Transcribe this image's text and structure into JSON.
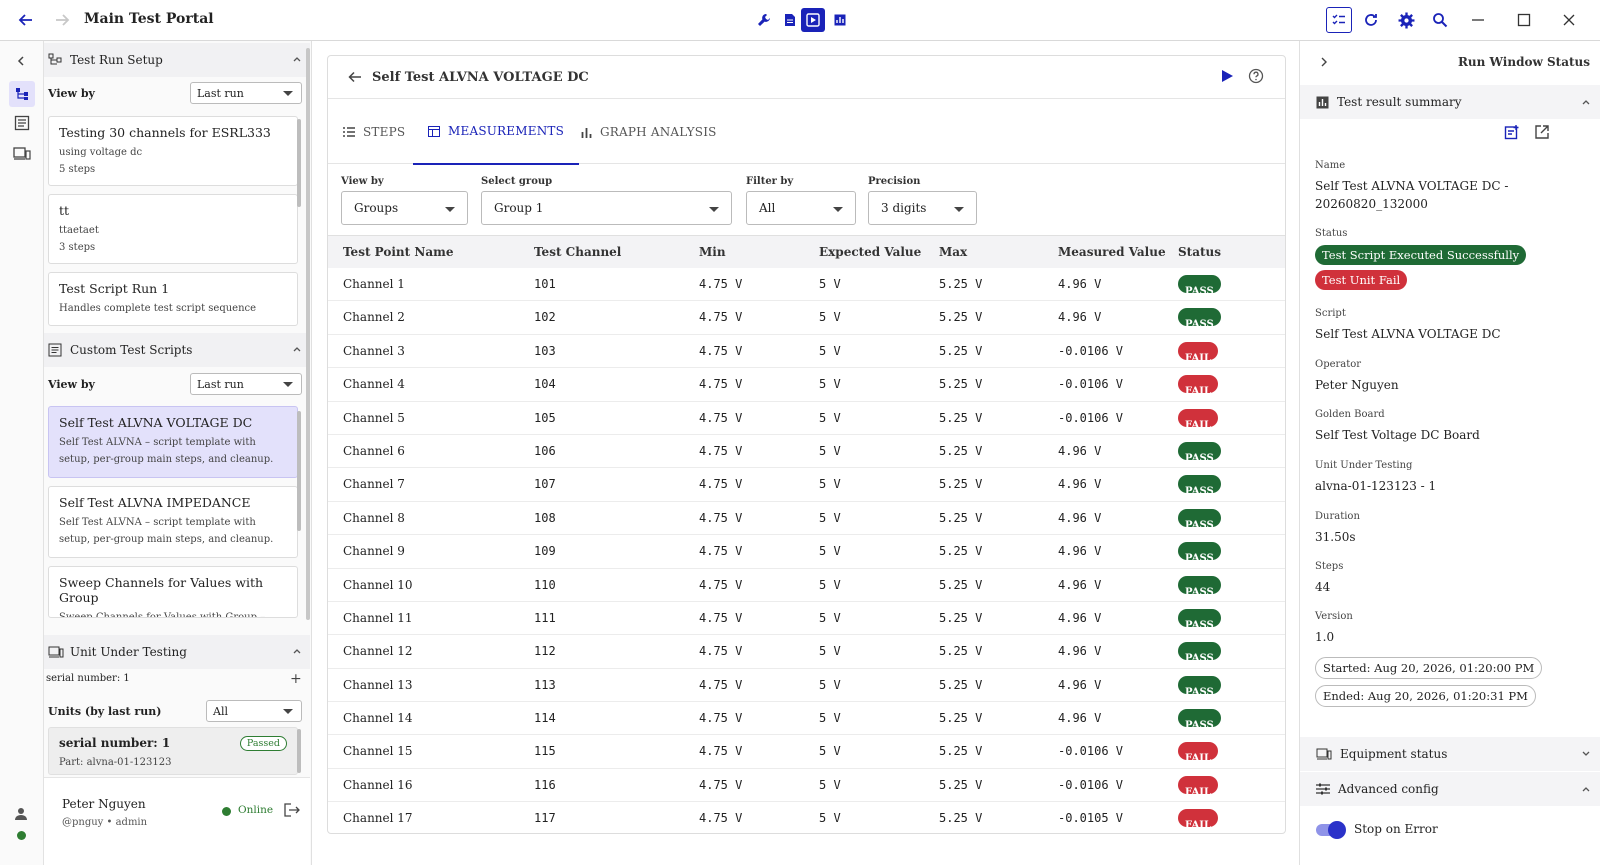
{
  "app": {
    "title": "Main Test Portal",
    "accent": "#1a23b8"
  },
  "toolbar_icons": [
    "wrench-icon",
    "document-icon",
    "run-window-icon",
    "chart-icon",
    "checklist-icon",
    "refresh-icon",
    "gear-icon",
    "search-icon",
    "minimize-icon",
    "maximize-icon",
    "close-icon"
  ],
  "left": {
    "setup": {
      "title": "Test Run Setup",
      "view_by_label": "View by",
      "view_by_value": "Last run",
      "cards": [
        {
          "title": "Testing 30 channels for ESRL333",
          "sub": "using voltage dc",
          "steps": "5 steps"
        },
        {
          "title": "tt",
          "sub": "ttaetaet",
          "steps": "3 steps"
        },
        {
          "title": "Test Script Run 1",
          "sub": "Handles complete test script sequence",
          "steps": ""
        }
      ]
    },
    "custom": {
      "title": "Custom Test Scripts",
      "view_by_label": "View by",
      "view_by_value": "Last run",
      "cards": [
        {
          "title": "Self Test ALVNA VOLTAGE DC",
          "sub": "Self Test ALVNA – script template with setup, per-group main steps, and cleanup."
        },
        {
          "title": "Self Test ALVNA IMPEDANCE",
          "sub": "Self Test ALVNA – script template with setup, per-group main steps, and cleanup."
        },
        {
          "title": "Sweep Channels for Values with Group",
          "sub": "Sweep Channels for Values with Group – script"
        }
      ]
    },
    "uut": {
      "title": "Unit Under Testing",
      "serial_line": "serial number: 1",
      "units_label": "Units (by last run)",
      "units_value": "All",
      "card_title": "serial number: 1",
      "card_badge": "Passed",
      "card_part": "Part: alvna-01-123123"
    },
    "user": {
      "name": "Peter Nguyen",
      "handle": "@pnguy • admin",
      "status": "Online"
    }
  },
  "main": {
    "title": "Self Test ALVNA VOLTAGE DC",
    "tabs": [
      {
        "label": "STEPS",
        "icon": "list-icon"
      },
      {
        "label": "MEASUREMENTS",
        "icon": "table-icon"
      },
      {
        "label": "GRAPH ANALYSIS",
        "icon": "bar-chart-icon"
      }
    ],
    "filters": {
      "view_by_label": "View by",
      "view_by_value": "Groups",
      "group_label": "Select group",
      "group_value": "Group 1",
      "filter_label": "Filter by",
      "filter_value": "All",
      "precision_label": "Precision",
      "precision_value": "3 digits"
    },
    "columns": [
      "Test Point Name",
      "Test Channel",
      "Min",
      "Expected Value",
      "Max",
      "Measured Value",
      "Status"
    ],
    "rows": [
      {
        "name": "Channel 1",
        "ch": "101",
        "min": "4.75 V",
        "exp": "5 V",
        "max": "5.25 V",
        "meas": "4.96 V",
        "status": "PASS"
      },
      {
        "name": "Channel 2",
        "ch": "102",
        "min": "4.75 V",
        "exp": "5 V",
        "max": "5.25 V",
        "meas": "4.96 V",
        "status": "PASS"
      },
      {
        "name": "Channel 3",
        "ch": "103",
        "min": "4.75 V",
        "exp": "5 V",
        "max": "5.25 V",
        "meas": "-0.0106 V",
        "status": "FAIL"
      },
      {
        "name": "Channel 4",
        "ch": "104",
        "min": "4.75 V",
        "exp": "5 V",
        "max": "5.25 V",
        "meas": "-0.0106 V",
        "status": "FAIL"
      },
      {
        "name": "Channel 5",
        "ch": "105",
        "min": "4.75 V",
        "exp": "5 V",
        "max": "5.25 V",
        "meas": "-0.0106 V",
        "status": "FAIL"
      },
      {
        "name": "Channel 6",
        "ch": "106",
        "min": "4.75 V",
        "exp": "5 V",
        "max": "5.25 V",
        "meas": "4.96 V",
        "status": "PASS"
      },
      {
        "name": "Channel 7",
        "ch": "107",
        "min": "4.75 V",
        "exp": "5 V",
        "max": "5.25 V",
        "meas": "4.96 V",
        "status": "PASS"
      },
      {
        "name": "Channel 8",
        "ch": "108",
        "min": "4.75 V",
        "exp": "5 V",
        "max": "5.25 V",
        "meas": "4.96 V",
        "status": "PASS"
      },
      {
        "name": "Channel 9",
        "ch": "109",
        "min": "4.75 V",
        "exp": "5 V",
        "max": "5.25 V",
        "meas": "4.96 V",
        "status": "PASS"
      },
      {
        "name": "Channel 10",
        "ch": "110",
        "min": "4.75 V",
        "exp": "5 V",
        "max": "5.25 V",
        "meas": "4.96 V",
        "status": "PASS"
      },
      {
        "name": "Channel 11",
        "ch": "111",
        "min": "4.75 V",
        "exp": "5 V",
        "max": "5.25 V",
        "meas": "4.96 V",
        "status": "PASS"
      },
      {
        "name": "Channel 12",
        "ch": "112",
        "min": "4.75 V",
        "exp": "5 V",
        "max": "5.25 V",
        "meas": "4.96 V",
        "status": "PASS"
      },
      {
        "name": "Channel 13",
        "ch": "113",
        "min": "4.75 V",
        "exp": "5 V",
        "max": "5.25 V",
        "meas": "4.96 V",
        "status": "PASS"
      },
      {
        "name": "Channel 14",
        "ch": "114",
        "min": "4.75 V",
        "exp": "5 V",
        "max": "5.25 V",
        "meas": "4.96 V",
        "status": "PASS"
      },
      {
        "name": "Channel 15",
        "ch": "115",
        "min": "4.75 V",
        "exp": "5 V",
        "max": "5.25 V",
        "meas": "-0.0106 V",
        "status": "FAIL"
      },
      {
        "name": "Channel 16",
        "ch": "116",
        "min": "4.75 V",
        "exp": "5 V",
        "max": "5.25 V",
        "meas": "-0.0106 V",
        "status": "FAIL"
      },
      {
        "name": "Channel 17",
        "ch": "117",
        "min": "4.75 V",
        "exp": "5 V",
        "max": "5.25 V",
        "meas": "-0.0105 V",
        "status": "FAIL"
      }
    ]
  },
  "right": {
    "title": "Run Window Status",
    "summary_title": "Test result summary",
    "name_label": "Name",
    "name_value": "Self Test ALVNA VOLTAGE DC - 20260820_132000",
    "status_label": "Status",
    "status_ok": "Test Script Executed Successfully",
    "status_bad": "Test Unit Fail",
    "script_label": "Script",
    "script_value": "Self Test ALVNA VOLTAGE DC",
    "operator_label": "Operator",
    "operator_value": "Peter Nguyen",
    "golden_label": "Golden Board",
    "golden_value": "Self Test Voltage DC Board",
    "uut_label": "Unit Under Testing",
    "uut_value": "alvna-01-123123 - 1",
    "duration_label": "Duration",
    "duration_value": "31.50s",
    "steps_label": "Steps",
    "steps_value": "44",
    "version_label": "Version",
    "version_value": "1.0",
    "started": "Started: Aug 20, 2026, 01:20:00 PM",
    "ended": "Ended: Aug 20, 2026, 01:20:31 PM",
    "equipment_title": "Equipment status",
    "advanced_title": "Advanced config",
    "stop_on_error": "Stop on Error"
  }
}
